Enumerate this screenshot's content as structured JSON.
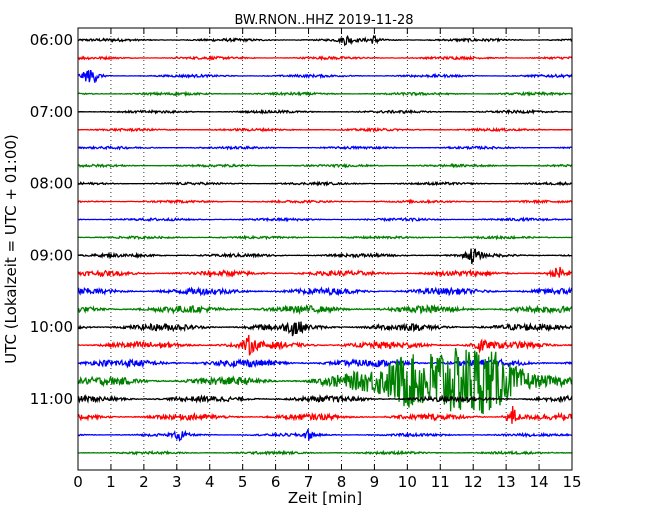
{
  "chart_data": {
    "type": "line",
    "title": "BW.RNON..HHZ 2019-11-28",
    "xlabel": "Zeit  [min]",
    "ylabel": "UTC (Lokalzeit = UTC + 01:00)",
    "xlim": [
      0,
      15
    ],
    "x_ticks": [
      "0",
      "1",
      "2",
      "3",
      "4",
      "5",
      "6",
      "7",
      "8",
      "9",
      "10",
      "11",
      "12",
      "13",
      "14",
      "15"
    ],
    "y_ticks": [
      "06:00",
      "07:00",
      "08:00",
      "09:00",
      "10:00",
      "11:00"
    ],
    "grid": "vertical dotted at each minute",
    "trace_colors": [
      "#000000",
      "#ff0000",
      "#0000ff",
      "#008000"
    ],
    "series": [
      {
        "start": "06:00",
        "amplitude": 0.15
      },
      {
        "start": "06:15",
        "amplitude": 0.14
      },
      {
        "start": "06:30",
        "amplitude": 0.14
      },
      {
        "start": "06:45",
        "amplitude": 0.14
      },
      {
        "start": "07:00",
        "amplitude": 0.14
      },
      {
        "start": "07:15",
        "amplitude": 0.13
      },
      {
        "start": "07:30",
        "amplitude": 0.13
      },
      {
        "start": "07:45",
        "amplitude": 0.13
      },
      {
        "start": "08:00",
        "amplitude": 0.13
      },
      {
        "start": "08:15",
        "amplitude": 0.13
      },
      {
        "start": "08:30",
        "amplitude": 0.14
      },
      {
        "start": "08:45",
        "amplitude": 0.13
      },
      {
        "start": "09:00",
        "amplitude": 0.18
      },
      {
        "start": "09:15",
        "amplitude": 0.28
      },
      {
        "start": "09:30",
        "amplitude": 0.35
      },
      {
        "start": "09:45",
        "amplitude": 0.38
      },
      {
        "start": "10:00",
        "amplitude": 0.38
      },
      {
        "start": "10:15",
        "amplitude": 0.38
      },
      {
        "start": "10:30",
        "amplitude": 0.4
      },
      {
        "start": "10:45",
        "amplitude": 0.45
      },
      {
        "start": "11:00",
        "amplitude": 0.32
      },
      {
        "start": "11:15",
        "amplitude": 0.32
      },
      {
        "start": "11:30",
        "amplitude": 0.15
      },
      {
        "start": "11:45",
        "amplitude": 0.14
      }
    ],
    "events": [
      {
        "trace": 0,
        "minute": 8.15,
        "amplitude": 0.6
      },
      {
        "trace": 0,
        "minute": 9.0,
        "amplitude": 0.5
      },
      {
        "trace": 2,
        "minute": 0.3,
        "amplitude": 0.7
      },
      {
        "trace": 2,
        "minute": 0.5,
        "amplitude": 0.6
      },
      {
        "trace": 12,
        "minute": 12.0,
        "amplitude": 1.1
      },
      {
        "trace": 13,
        "minute": 14.6,
        "amplitude": 1.0
      },
      {
        "trace": 16,
        "minute": 6.6,
        "amplitude": 1.2
      },
      {
        "trace": 17,
        "minute": 5.2,
        "amplitude": 0.9
      },
      {
        "trace": 17,
        "minute": 12.2,
        "amplitude": 0.9
      },
      {
        "trace": 19,
        "minute": 9.9,
        "amplitude": 2.2
      },
      {
        "trace": 19,
        "minute": 11.0,
        "amplitude": 2.0
      },
      {
        "trace": 19,
        "minute": 12.0,
        "amplitude": 2.0
      },
      {
        "trace": 19,
        "minute": 12.7,
        "amplitude": 1.6
      },
      {
        "trace": 21,
        "minute": 13.2,
        "amplitude": 1.2
      },
      {
        "trace": 22,
        "minute": 3.1,
        "amplitude": 0.7
      },
      {
        "trace": 22,
        "minute": 7.0,
        "amplitude": 0.6
      }
    ]
  }
}
